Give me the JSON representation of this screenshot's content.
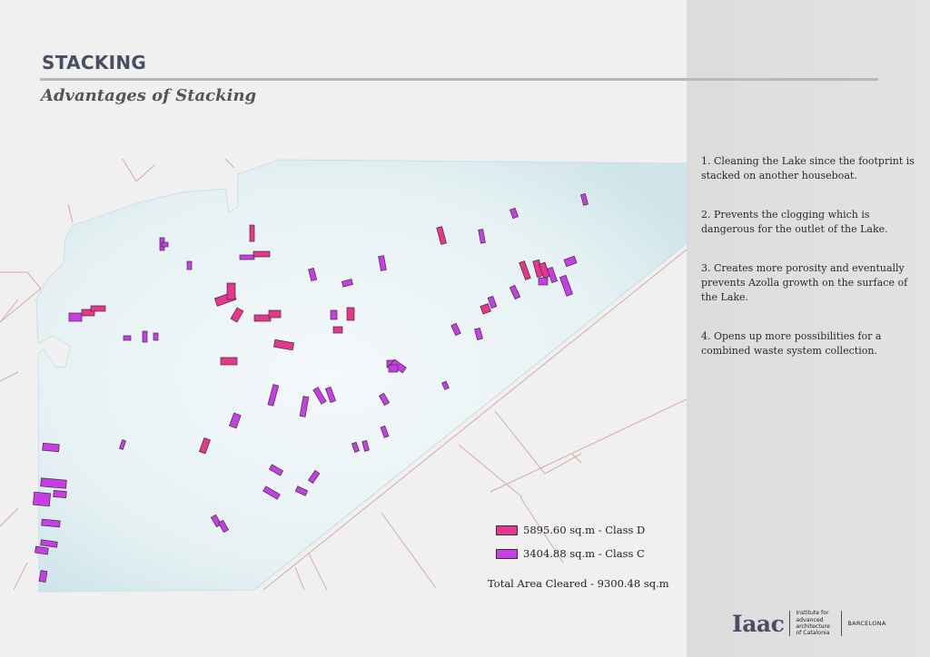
{
  "header": {
    "title": "STACKING",
    "subtitle": "Advantages of Stacking"
  },
  "points": [
    "1. Cleaning the Lake since the footprint is stacked on another houseboat.",
    "2. Prevents the clogging which is dangerous for the outlet of the Lake.",
    "3. Creates more porosity and eventually prevents Azolla growth on the surface of the Lake.",
    "4. Opens up more possibilities for a combined waste system collection."
  ],
  "legend": {
    "items": [
      {
        "label": "5895.60 sq.m - Class D",
        "color": "#e8358f"
      },
      {
        "label": "3404.88 sq.m - Class C",
        "color": "#c93de8"
      }
    ],
    "total": "Total Area Cleared  - 9300.48 sq.m"
  },
  "logo": {
    "mark": "Iaac",
    "institute": "Institute for advanced architecture of Catalonia",
    "city": "BARCELONA"
  },
  "colors": {
    "lake": "#dcecef",
    "lake_edge": "#c7e1e6",
    "roads": "#d9a7a7",
    "background": "#f0f0f0",
    "title": "#4a4e62"
  }
}
